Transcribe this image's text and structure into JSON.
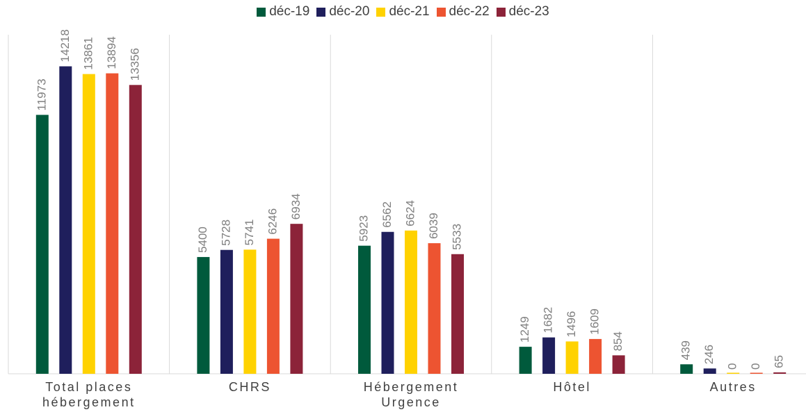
{
  "chart_data": {
    "type": "bar",
    "categories": [
      "Total places hébergement",
      "CHRS",
      "Hébergement Urgence",
      "Hôtel",
      "Autres"
    ],
    "series": [
      {
        "name": "déc-19",
        "color": "#005a3c",
        "values": [
          11973,
          5400,
          5923,
          1249,
          439
        ]
      },
      {
        "name": "déc-20",
        "color": "#1f1f5c",
        "values": [
          14218,
          5728,
          6562,
          1682,
          246
        ]
      },
      {
        "name": "déc-21",
        "color": "#ffd200",
        "values": [
          13861,
          5741,
          6624,
          1496,
          0
        ]
      },
      {
        "name": "déc-22",
        "color": "#ed5431",
        "values": [
          13894,
          6246,
          6039,
          1609,
          0
        ]
      },
      {
        "name": "déc-23",
        "color": "#8c2339",
        "values": [
          13356,
          6934,
          5533,
          854,
          65
        ]
      }
    ],
    "ylim": [
      0,
      16000
    ],
    "legend": "top"
  }
}
